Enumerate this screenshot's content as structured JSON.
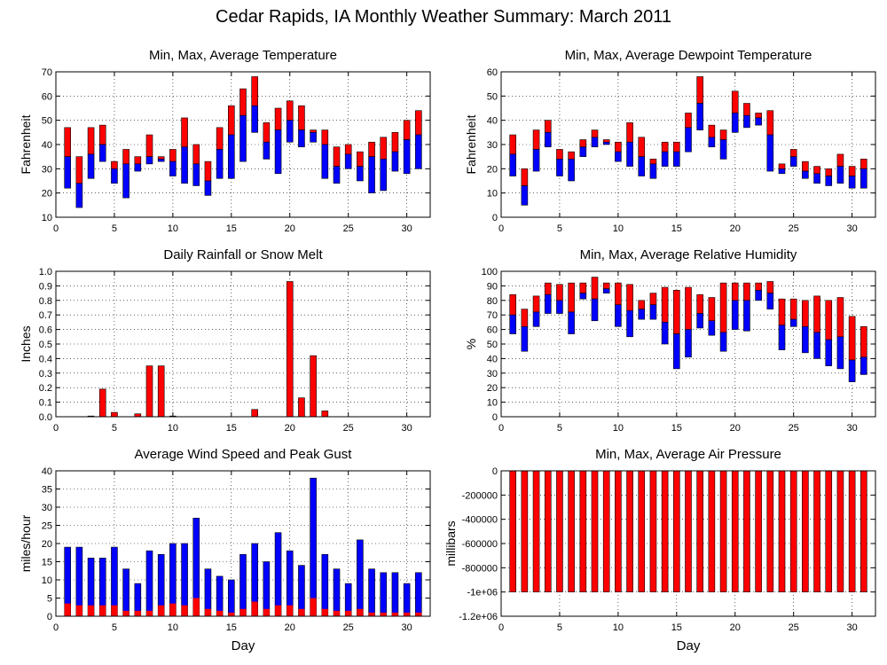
{
  "figure": {
    "title": "Cedar Rapids, IA Monthly Weather Summary: March 2011",
    "colors": {
      "red": "#ff0000",
      "blue": "#0000ff",
      "axis": "#000000",
      "grid": "#000000"
    }
  },
  "chart_data": [
    {
      "id": "temp",
      "type": "bar",
      "subtype": "floating-range",
      "title": "Min, Max, Average Temperature",
      "xlabel": "",
      "ylabel": "Fahrenheit",
      "xlim": [
        0,
        32
      ],
      "ylim": [
        10,
        70
      ],
      "xticks": [
        0,
        5,
        10,
        15,
        20,
        25,
        30
      ],
      "yticks": [
        10,
        20,
        30,
        40,
        50,
        60,
        70
      ],
      "ytick_labels": [
        "10",
        "20",
        "30",
        "40",
        "50",
        "60",
        "70"
      ],
      "grid": true,
      "series": [
        {
          "field": "max",
          "color": "#ff0000"
        },
        {
          "field": "avg",
          "color": "#0000ff"
        },
        {
          "field": "min"
        }
      ],
      "x": [
        1,
        2,
        3,
        4,
        5,
        6,
        7,
        8,
        9,
        10,
        11,
        12,
        13,
        14,
        15,
        16,
        17,
        18,
        19,
        20,
        21,
        22,
        23,
        24,
        25,
        26,
        27,
        28,
        29,
        30,
        31
      ],
      "max": [
        47,
        35,
        47,
        48,
        33,
        38,
        35,
        44,
        35,
        38,
        51,
        40,
        33,
        47,
        56,
        63,
        68,
        49,
        55,
        58,
        56,
        46,
        46,
        39,
        40,
        37,
        41,
        43,
        45,
        50,
        54
      ],
      "avg": [
        35,
        24,
        36,
        40,
        30,
        32,
        32,
        35,
        34,
        33,
        39,
        32,
        25,
        38,
        44,
        52,
        56,
        41,
        46,
        50,
        46,
        45,
        40,
        31,
        36,
        31,
        35,
        34,
        37,
        42,
        44
      ],
      "min": [
        22,
        14,
        26,
        33,
        24,
        18,
        29,
        32,
        33,
        27,
        24,
        23,
        19,
        26,
        26,
        33,
        45,
        34,
        28,
        41,
        39,
        41,
        26,
        24,
        30,
        25,
        20,
        21,
        29,
        28,
        30
      ]
    },
    {
      "id": "dewp",
      "type": "bar",
      "subtype": "floating-range",
      "title": "Min, Max, Average Dewpoint Temperature",
      "xlabel": "",
      "ylabel": "Fahrenheit",
      "xlim": [
        0,
        32
      ],
      "ylim": [
        0,
        60
      ],
      "xticks": [
        0,
        5,
        10,
        15,
        20,
        25,
        30
      ],
      "yticks": [
        0,
        10,
        20,
        30,
        40,
        50,
        60
      ],
      "ytick_labels": [
        "0",
        "10",
        "20",
        "30",
        "40",
        "50",
        "60"
      ],
      "grid": true,
      "series": [
        {
          "field": "max",
          "color": "#ff0000"
        },
        {
          "field": "avg",
          "color": "#0000ff"
        },
        {
          "field": "min"
        }
      ],
      "x": [
        1,
        2,
        3,
        4,
        5,
        6,
        7,
        8,
        9,
        10,
        11,
        12,
        13,
        14,
        15,
        16,
        17,
        18,
        19,
        20,
        21,
        22,
        23,
        24,
        25,
        26,
        27,
        28,
        29,
        30,
        31
      ],
      "max": [
        34,
        20,
        36,
        40,
        28,
        27,
        32,
        36,
        32,
        31,
        39,
        33,
        24,
        31,
        31,
        43,
        58,
        38,
        36,
        52,
        47,
        43,
        44,
        22,
        28,
        23,
        21,
        20,
        26,
        21,
        24
      ],
      "avg": [
        26,
        13,
        28,
        35,
        24,
        24,
        29,
        33,
        31,
        27,
        31,
        25,
        22,
        27,
        27,
        37,
        47,
        33,
        32,
        43,
        42,
        41,
        34,
        20,
        25,
        19,
        18,
        17,
        21,
        17,
        20
      ],
      "min": [
        17,
        5,
        19,
        29,
        17,
        15,
        25,
        29,
        30,
        23,
        21,
        17,
        16,
        21,
        21,
        27,
        36,
        29,
        24,
        35,
        37,
        38,
        19,
        18,
        21,
        16,
        14,
        13,
        14,
        12,
        12
      ]
    },
    {
      "id": "rain",
      "type": "bar",
      "title": "Daily Rainfall or Snow Melt",
      "xlabel": "",
      "ylabel": "Inches",
      "xlim": [
        0,
        32
      ],
      "ylim": [
        0,
        1.0
      ],
      "xticks": [
        0,
        5,
        10,
        15,
        20,
        25,
        30
      ],
      "yticks": [
        0,
        0.1,
        0.2,
        0.3,
        0.4,
        0.5,
        0.6,
        0.7,
        0.8,
        0.9,
        1.0
      ],
      "ytick_labels": [
        "0.0",
        "0.1",
        "0.2",
        "0.3",
        "0.4",
        "0.5",
        "0.6",
        "0.7",
        "0.8",
        "0.9",
        "1.0"
      ],
      "grid": true,
      "series": [
        {
          "field": "values",
          "color": "#ff0000"
        }
      ],
      "x": [
        1,
        2,
        3,
        4,
        5,
        6,
        7,
        8,
        9,
        10,
        11,
        12,
        13,
        14,
        15,
        16,
        17,
        18,
        19,
        20,
        21,
        22,
        23,
        24,
        25,
        26,
        27,
        28,
        29,
        30,
        31
      ],
      "values": [
        0,
        0,
        0.005,
        0.19,
        0.03,
        0,
        0.02,
        0.35,
        0.35,
        0.005,
        0,
        0,
        0,
        0,
        0,
        0,
        0.05,
        0,
        0,
        0.93,
        0.13,
        0.42,
        0.04,
        0,
        0,
        0,
        0,
        0,
        0,
        0,
        0
      ]
    },
    {
      "id": "rh",
      "type": "bar",
      "subtype": "floating-range",
      "title": "Min, Max, Average Relative Humidity",
      "xlabel": "",
      "ylabel": "%",
      "xlim": [
        0,
        32
      ],
      "ylim": [
        0,
        100
      ],
      "xticks": [
        0,
        5,
        10,
        15,
        20,
        25,
        30
      ],
      "yticks": [
        0,
        10,
        20,
        30,
        40,
        50,
        60,
        70,
        80,
        90,
        100
      ],
      "ytick_labels": [
        "0",
        "10",
        "20",
        "30",
        "40",
        "50",
        "60",
        "70",
        "80",
        "90",
        "100"
      ],
      "grid": true,
      "series": [
        {
          "field": "max",
          "color": "#ff0000"
        },
        {
          "field": "avg",
          "color": "#0000ff"
        },
        {
          "field": "min"
        }
      ],
      "x": [
        1,
        2,
        3,
        4,
        5,
        6,
        7,
        8,
        9,
        10,
        11,
        12,
        13,
        14,
        15,
        16,
        17,
        18,
        19,
        20,
        21,
        22,
        23,
        24,
        25,
        26,
        27,
        28,
        29,
        30,
        31
      ],
      "max": [
        84,
        74,
        83,
        92,
        91,
        92,
        92,
        96,
        92,
        92,
        91,
        80,
        85,
        89,
        87,
        89,
        84,
        82,
        92,
        92,
        92,
        92,
        93,
        81,
        81,
        80,
        83,
        80,
        82,
        69,
        62
      ],
      "avg": [
        70,
        62,
        72,
        84,
        80,
        72,
        85,
        81,
        88,
        77,
        73,
        74,
        77,
        65,
        57,
        60,
        71,
        66,
        58,
        80,
        80,
        87,
        85,
        63,
        67,
        62,
        58,
        53,
        55,
        39,
        41
      ],
      "min": [
        57,
        45,
        62,
        71,
        71,
        57,
        81,
        66,
        85,
        62,
        55,
        67,
        67,
        50,
        33,
        41,
        61,
        56,
        45,
        60,
        59,
        80,
        74,
        46,
        62,
        44,
        40,
        35,
        33,
        24,
        29
      ]
    },
    {
      "id": "wind",
      "type": "bar",
      "title": "Average Wind Speed and Peak Gust",
      "xlabel": "Day",
      "ylabel": "miles/hour",
      "xlim": [
        0,
        32
      ],
      "ylim": [
        0,
        40
      ],
      "xticks": [
        0,
        5,
        10,
        15,
        20,
        25,
        30
      ],
      "yticks": [
        0,
        5,
        10,
        15,
        20,
        25,
        30,
        35,
        40
      ],
      "ytick_labels": [
        "0",
        "5",
        "10",
        "15",
        "20",
        "25",
        "30",
        "35",
        "40"
      ],
      "grid": true,
      "series": [
        {
          "field": "gust",
          "color": "#0000ff"
        },
        {
          "field": "avg",
          "color": "#ff0000"
        }
      ],
      "x": [
        1,
        2,
        3,
        4,
        5,
        6,
        7,
        8,
        9,
        10,
        11,
        12,
        13,
        14,
        15,
        16,
        17,
        18,
        19,
        20,
        21,
        22,
        23,
        24,
        25,
        26,
        27,
        28,
        29,
        30,
        31
      ],
      "gust": [
        19,
        19,
        16,
        16,
        19,
        13,
        9,
        18,
        17,
        20,
        20,
        27,
        13,
        11,
        10,
        17,
        20,
        15,
        23,
        18,
        14,
        38,
        17,
        13,
        9,
        21,
        13,
        12,
        12,
        9,
        12
      ],
      "avg": [
        3.5,
        3,
        3,
        3,
        3,
        1.5,
        1.5,
        1.5,
        3,
        3.5,
        3,
        5,
        2,
        1.5,
        1,
        2,
        4,
        2,
        3,
        3,
        2,
        5,
        2,
        1.5,
        1.5,
        2,
        1,
        1,
        1,
        1,
        1
      ]
    },
    {
      "id": "pres",
      "type": "bar",
      "subtype": "floating-range",
      "title": "Min, Max, Average Air Pressure",
      "xlabel": "Day",
      "ylabel": "millibars",
      "xlim": [
        0,
        32
      ],
      "ylim": [
        -1200000,
        0
      ],
      "xticks": [
        0,
        5,
        10,
        15,
        20,
        25,
        30
      ],
      "yticks": [
        0,
        -200000,
        -400000,
        -600000,
        -800000,
        -1000000,
        -1200000
      ],
      "ytick_labels": [
        "0",
        "-200000",
        "-400000",
        "-600000",
        "-800000",
        "-1e+06",
        "-1.2e+06"
      ],
      "grid": true,
      "series": [
        {
          "field": "max",
          "color": "#ff0000"
        },
        {
          "field": "min"
        }
      ],
      "x": [
        1,
        2,
        3,
        4,
        5,
        6,
        7,
        8,
        9,
        10,
        11,
        12,
        13,
        14,
        15,
        16,
        17,
        18,
        19,
        20,
        21,
        22,
        23,
        24,
        25,
        26,
        27,
        28,
        29,
        30,
        31
      ],
      "max": [
        0,
        0,
        0,
        0,
        0,
        0,
        0,
        0,
        0,
        0,
        0,
        0,
        0,
        0,
        0,
        0,
        0,
        0,
        0,
        0,
        0,
        0,
        0,
        0,
        0,
        0,
        0,
        0,
        0,
        0,
        0
      ],
      "min": [
        -999900,
        -999900,
        -999900,
        -999900,
        -999900,
        -999900,
        -999900,
        -999900,
        -999900,
        -999900,
        -999900,
        -999900,
        -999900,
        -999900,
        -999900,
        -999900,
        -999900,
        -999900,
        -999900,
        -999900,
        -999900,
        -999900,
        -999900,
        -999900,
        -999900,
        -999900,
        -999900,
        -999900,
        -999900,
        -999900,
        -999900
      ]
    }
  ]
}
